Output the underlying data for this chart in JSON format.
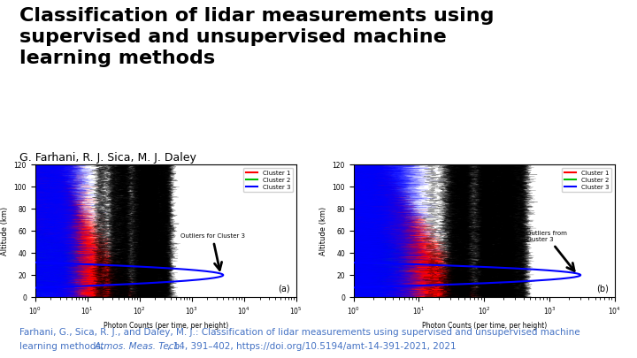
{
  "title": "Classification of lidar measurements using\nsupervised and unsupervised machine\nlearning methods",
  "authors": "G. Farhani, R. J. Sica, M. J. Daley",
  "citation_color": "#4472C4",
  "background_color": "#ffffff",
  "title_fontsize": 16,
  "authors_fontsize": 9,
  "citation_fontsize": 7.5,
  "panel_a_label": "(a)",
  "panel_b_label": "(b)",
  "xlabel": "Photon Counts (per time, per height)",
  "ylabel": "Altitude (km)",
  "ylim": [
    0,
    120
  ],
  "cluster1_color": "#FF0000",
  "cluster2_color": "#00BB00",
  "cluster3_color": "#0000FF",
  "panel_a_annotation": "Outliers for Cluster 3",
  "panel_b_annotation": "Outliers from\ncluster 3",
  "legend_entries": [
    "Cluster 1",
    "Cluster 2",
    "Cluster 3"
  ]
}
